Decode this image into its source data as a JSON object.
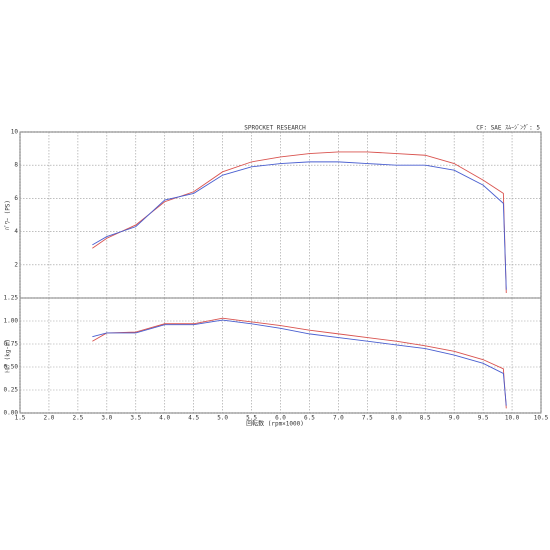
{
  "chart_data": [
    {
      "type": "line",
      "title": "SPROCKET RESEARCH",
      "annotation": "CF: SAE ｽﾑｰｼﾞﾝｸﾞ: 5",
      "ylabel": "ﾊﾟﾜｰ (PS)",
      "x": [
        2.75,
        3.0,
        3.5,
        4.0,
        4.5,
        5.0,
        5.5,
        6.0,
        6.5,
        7.0,
        7.5,
        8.0,
        8.5,
        9.0,
        9.5,
        9.85,
        9.9
      ],
      "series": [
        {
          "color": "#d9534f",
          "values": [
            3.0,
            3.6,
            4.4,
            5.8,
            6.4,
            7.6,
            8.2,
            8.5,
            8.7,
            8.8,
            8.8,
            8.7,
            8.6,
            8.1,
            7.1,
            6.3,
            0.3
          ]
        },
        {
          "color": "#4a5fd0",
          "values": [
            3.2,
            3.7,
            4.3,
            5.9,
            6.3,
            7.4,
            7.9,
            8.1,
            8.2,
            8.2,
            8.1,
            8.0,
            8.0,
            7.7,
            6.8,
            5.7,
            0.5
          ]
        }
      ],
      "xlim": [
        1.5,
        10.5
      ],
      "xticks": [
        1.5,
        2,
        2.5,
        3,
        3.5,
        4,
        4.5,
        5,
        5.5,
        6,
        6.5,
        7,
        7.5,
        8,
        8.5,
        9,
        9.5,
        10,
        10.5
      ],
      "ylim": [
        0,
        10
      ],
      "yticks": [
        2,
        4,
        6,
        8,
        10
      ],
      "grid": true
    },
    {
      "type": "line",
      "ylabel": "ﾄﾙｸ (kg-m)",
      "xlabel": "回転数 (rpm×1000)",
      "x": [
        2.75,
        3.0,
        3.5,
        4.0,
        4.5,
        5.0,
        5.5,
        6.0,
        6.5,
        7.0,
        7.5,
        8.0,
        8.5,
        9.0,
        9.5,
        9.85,
        9.9
      ],
      "series": [
        {
          "color": "#d9534f",
          "values": [
            0.78,
            0.87,
            0.88,
            0.97,
            0.97,
            1.03,
            0.99,
            0.95,
            0.9,
            0.86,
            0.82,
            0.78,
            0.73,
            0.67,
            0.58,
            0.48,
            0.05
          ]
        },
        {
          "color": "#4a5fd0",
          "values": [
            0.83,
            0.87,
            0.87,
            0.96,
            0.96,
            1.01,
            0.97,
            0.92,
            0.86,
            0.82,
            0.78,
            0.74,
            0.7,
            0.63,
            0.54,
            0.43,
            0.08
          ]
        }
      ],
      "xlim": [
        1.5,
        10.5
      ],
      "xticks": [
        {
          "value": 1.5,
          "label": "1.5"
        },
        {
          "value": 2,
          "label": "2.0"
        },
        {
          "value": 2.5,
          "label": "2.5"
        },
        {
          "value": 3,
          "label": "3.0"
        },
        {
          "value": 3.5,
          "label": "3.5"
        },
        {
          "value": 4,
          "label": "4.0"
        },
        {
          "value": 4.5,
          "label": "4.5"
        },
        {
          "value": 5,
          "label": "5.0"
        },
        {
          "value": 5.5,
          "label": "5.5"
        },
        {
          "value": 6,
          "label": "6.0"
        },
        {
          "value": 6.5,
          "label": "6.5"
        },
        {
          "value": 7,
          "label": "7.0"
        },
        {
          "value": 7.5,
          "label": "7.5"
        },
        {
          "value": 8,
          "label": "8.0"
        },
        {
          "value": 8.5,
          "label": "8.5"
        },
        {
          "value": 9,
          "label": "9.0"
        },
        {
          "value": 9.5,
          "label": "9.5"
        },
        {
          "value": 10,
          "label": "10.0"
        },
        {
          "value": 10.5,
          "label": "10.5"
        }
      ],
      "ylim": [
        0,
        1.25
      ],
      "yticks": [
        {
          "value": 0,
          "label": "0.00"
        },
        {
          "value": 0.25,
          "label": "0.25"
        },
        {
          "value": 0.5,
          "label": "0.50"
        },
        {
          "value": 0.75,
          "label": "0.75"
        },
        {
          "value": 1,
          "label": "1.00"
        },
        {
          "value": 1.25,
          "label": "1.25"
        }
      ],
      "grid": true
    }
  ]
}
